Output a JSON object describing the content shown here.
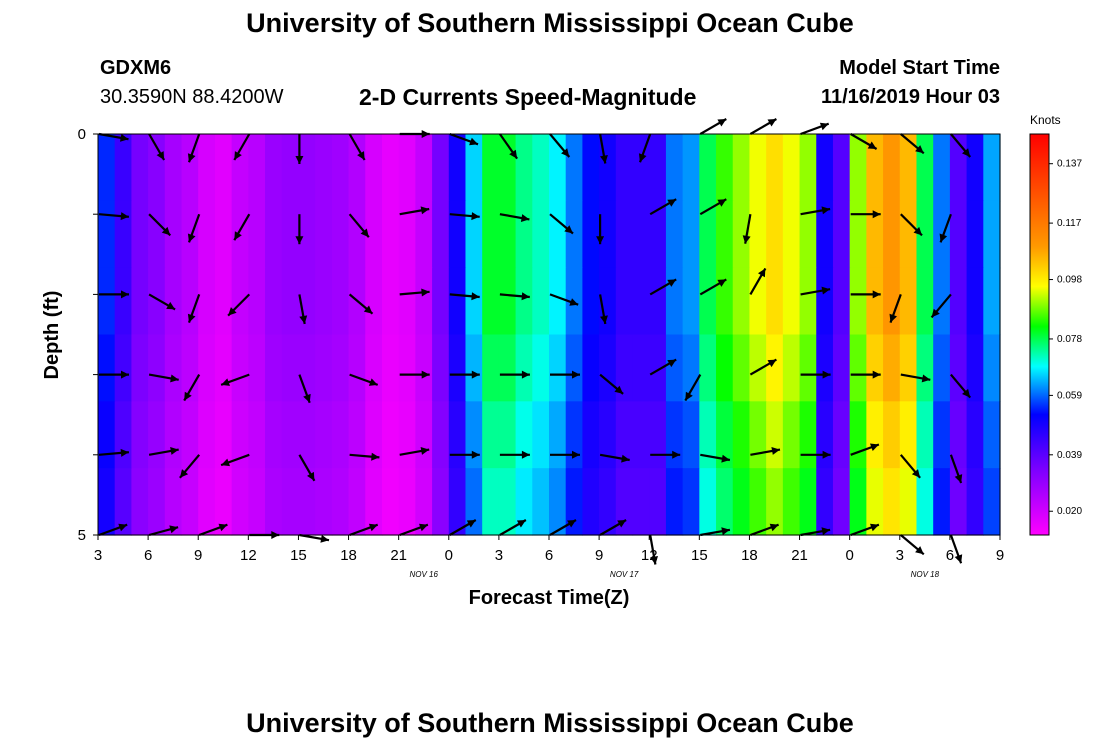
{
  "page": {
    "title_top": "University of Southern Mississippi Ocean Cube",
    "title_bottom": "University of Southern Mississippi Ocean Cube",
    "station_id": "GDXM6",
    "station_location": "30.3590N 88.4200W",
    "model_start_label": "Model Start Time",
    "model_start_value": "11/16/2019 Hour 03"
  },
  "chart_data": {
    "type": "heatmap",
    "title": "2-D Currents Speed-Magnitude",
    "xlabel": "Forecast Time(Z)",
    "ylabel": "Depth (ft)",
    "x_ticks": [
      "3",
      "6",
      "9",
      "12",
      "15",
      "18",
      "21",
      "0",
      "3",
      "6",
      "9",
      "12",
      "15",
      "18",
      "21",
      "0",
      "3",
      "6",
      "9"
    ],
    "date_labels": [
      {
        "text": "NOV 16",
        "after_tick": 6
      },
      {
        "text": "NOV 17",
        "after_tick": 10
      },
      {
        "text": "NOV 18",
        "after_tick": 16
      }
    ],
    "y_ticks": [
      "0",
      "5"
    ],
    "y_range": [
      0,
      5
    ],
    "colorbar": {
      "unit": "Knots",
      "range": [
        0.012,
        0.147
      ],
      "ticks": [
        0.02,
        0.039,
        0.059,
        0.078,
        0.098,
        0.117,
        0.137
      ],
      "tick_labels": [
        "0.020",
        "0.039",
        "0.059",
        "0.078",
        "0.098",
        "0.117",
        "0.137"
      ]
    },
    "time_steps": 54,
    "hours_per_step": 1,
    "depth_rows": 6,
    "column_speeds_knots": [
      0.055,
      0.044,
      0.035,
      0.032,
      0.027,
      0.024,
      0.019,
      0.017,
      0.022,
      0.024,
      0.029,
      0.03,
      0.03,
      0.029,
      0.028,
      0.025,
      0.019,
      0.016,
      0.017,
      0.022,
      0.035,
      0.05,
      0.066,
      0.08,
      0.08,
      0.075,
      0.072,
      0.068,
      0.06,
      0.053,
      0.05,
      0.045,
      0.045,
      0.045,
      0.06,
      0.062,
      0.078,
      0.085,
      0.09,
      0.095,
      0.1,
      0.095,
      0.09,
      0.05,
      0.04,
      0.09,
      0.105,
      0.11,
      0.105,
      0.078,
      0.06,
      0.04,
      0.05,
      0.063
    ],
    "depth_factors": [
      1.0,
      1.0,
      1.0,
      0.97,
      0.93,
      0.9
    ],
    "vectors": {
      "row_depths_ft": [
        0,
        1,
        2,
        3,
        4,
        5
      ],
      "columns_every_steps": 3,
      "directions_deg": [
        [
          100,
          150,
          200,
          210,
          180,
          150,
          90,
          110,
          145,
          140,
          170,
          200,
          60,
          60,
          70,
          120,
          130,
          140
        ],
        [
          95,
          135,
          200,
          210,
          180,
          140,
          80,
          95,
          100,
          130,
          180,
          60,
          60,
          190,
          80,
          90,
          135,
          200
        ],
        [
          90,
          120,
          200,
          225,
          170,
          130,
          85,
          95,
          95,
          110,
          170,
          60,
          60,
          30,
          80,
          90,
          200,
          220
        ],
        [
          90,
          100,
          210,
          250,
          160,
          110,
          90,
          90,
          90,
          90,
          130,
          60,
          210,
          60,
          90,
          90,
          100,
          140
        ],
        [
          85,
          80,
          220,
          250,
          150,
          95,
          80,
          90,
          90,
          90,
          100,
          90,
          100,
          80,
          90,
          70,
          140,
          160
        ],
        [
          70,
          75,
          70,
          90,
          100,
          70,
          70,
          60,
          60,
          60,
          60,
          170,
          80,
          70,
          80,
          70,
          130,
          160
        ]
      ]
    }
  }
}
